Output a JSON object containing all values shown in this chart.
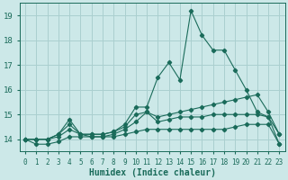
{
  "xlabel": "Humidex (Indice chaleur)",
  "background_color": "#cce8e8",
  "grid_color": "#aacfcf",
  "line_color": "#1a6b5a",
  "x_values": [
    0,
    1,
    2,
    3,
    4,
    5,
    6,
    7,
    8,
    9,
    10,
    11,
    12,
    13,
    14,
    15,
    16,
    17,
    18,
    19,
    20,
    21,
    22,
    23
  ],
  "series": {
    "s1": [
      14.0,
      14.0,
      14.0,
      14.2,
      14.8,
      14.2,
      14.2,
      14.2,
      14.3,
      14.6,
      15.3,
      15.3,
      16.5,
      17.1,
      16.4,
      19.2,
      18.2,
      17.6,
      17.6,
      16.8,
      16.0,
      15.1,
      14.9,
      14.2
    ],
    "s2": [
      14.0,
      14.0,
      14.0,
      14.2,
      14.6,
      14.2,
      14.2,
      14.2,
      14.3,
      14.5,
      15.0,
      15.1,
      14.9,
      15.0,
      15.1,
      15.2,
      15.3,
      15.4,
      15.5,
      15.6,
      15.7,
      15.8,
      15.1,
      14.2
    ],
    "s3": [
      14.0,
      14.0,
      14.0,
      14.1,
      14.4,
      14.2,
      14.1,
      14.1,
      14.2,
      14.4,
      14.7,
      15.1,
      14.7,
      14.8,
      14.9,
      14.9,
      14.9,
      15.0,
      15.0,
      15.0,
      15.0,
      15.0,
      14.9,
      13.8
    ],
    "s4": [
      14.0,
      13.8,
      13.8,
      13.9,
      14.1,
      14.1,
      14.1,
      14.1,
      14.1,
      14.2,
      14.3,
      14.4,
      14.4,
      14.4,
      14.4,
      14.4,
      14.4,
      14.4,
      14.4,
      14.5,
      14.6,
      14.6,
      14.6,
      13.8
    ]
  },
  "ylim": [
    13.5,
    19.5
  ],
  "xlim": [
    -0.5,
    23.5
  ],
  "yticks": [
    14,
    15,
    16,
    17,
    18,
    19
  ],
  "xticks": [
    0,
    1,
    2,
    3,
    4,
    5,
    6,
    7,
    8,
    9,
    10,
    11,
    12,
    13,
    14,
    15,
    16,
    17,
    18,
    19,
    20,
    21,
    22,
    23
  ],
  "tick_fontsize": 5.5,
  "ylabel_fontsize": 7.0,
  "xlabel_fontsize": 7.0
}
